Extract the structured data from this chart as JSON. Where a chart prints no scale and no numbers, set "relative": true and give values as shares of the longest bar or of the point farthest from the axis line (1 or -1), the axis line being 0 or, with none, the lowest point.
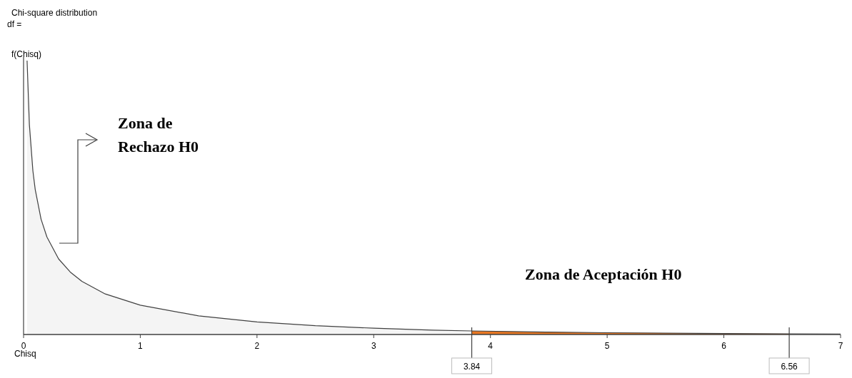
{
  "chart_data": {
    "type": "area",
    "title": "Chi-square distribution",
    "subtitle": "df =",
    "xlabel": "Chisq",
    "ylabel": "f(Chisq)",
    "relative": true,
    "xlim": [
      0,
      7
    ],
    "xticks": [
      0,
      1,
      2,
      3,
      4,
      5,
      6,
      7
    ],
    "series": [
      {
        "type": "area",
        "color": "#f4f4f4",
        "x": [
          0.03,
          0.05,
          0.08,
          0.1,
          0.15,
          0.2,
          0.3,
          0.4,
          0.5,
          0.7,
          1,
          1.5,
          2,
          2.5,
          3,
          3.5,
          3.84
        ],
        "values": [
          1,
          0.766,
          0.597,
          0.529,
          0.421,
          0.356,
          0.276,
          0.228,
          0.194,
          0.148,
          0.107,
          0.068,
          0.046,
          0.032,
          0.023,
          0.016,
          0.013
        ]
      },
      {
        "type": "area",
        "color": "#e87722",
        "x": [
          3.84,
          4.5,
          5,
          6,
          6.56
        ],
        "values": [
          0.013,
          0.0087,
          0.0065,
          0.0036,
          0.0026
        ]
      },
      {
        "type": "line",
        "color": "#404040",
        "x": [
          6.56,
          7
        ],
        "values": [
          0.0026,
          0.002
        ]
      }
    ],
    "ref_lines": [
      {
        "axis": "x",
        "value": 3.84,
        "label": "3.84"
      },
      {
        "axis": "x",
        "value": 6.56,
        "label": "6.56"
      }
    ],
    "annotations": [
      "Zona de\nRechazo H0",
      "Zona de Aceptación H0"
    ]
  }
}
